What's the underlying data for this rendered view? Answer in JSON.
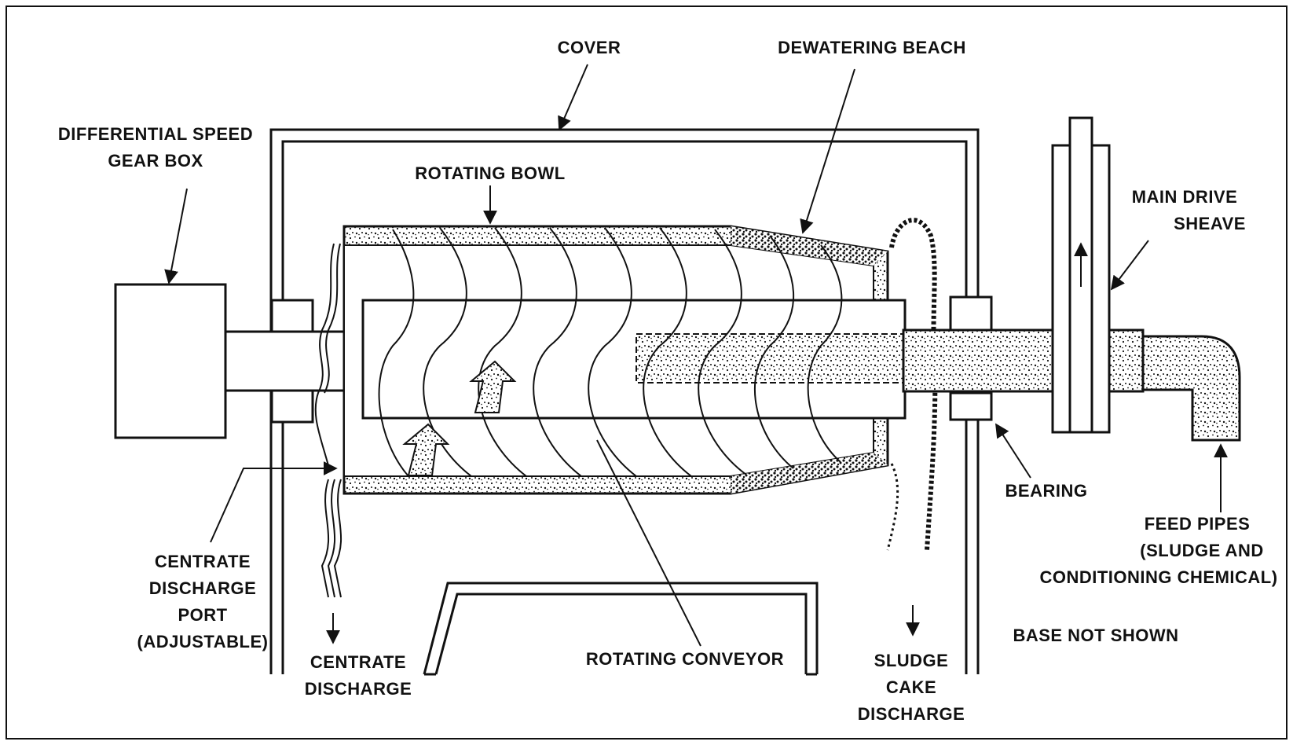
{
  "labels": {
    "cover": "COVER",
    "dewatering_beach": "DEWATERING BEACH",
    "gear_box_1": "DIFFERENTIAL SPEED",
    "gear_box_2": "GEAR BOX",
    "rotating_bowl": "ROTATING BOWL",
    "main_drive_1": "MAIN DRIVE",
    "main_drive_2": "SHEAVE",
    "bearing": "BEARING",
    "feed_1": "FEED PIPES",
    "feed_2": "(SLUDGE AND",
    "feed_3": "CONDITIONING CHEMICAL)",
    "base_not_shown": "BASE NOT SHOWN",
    "centrate_port_1": "CENTRATE",
    "centrate_port_2": "DISCHARGE",
    "centrate_port_3": "PORT",
    "centrate_port_4": "(ADJUSTABLE)",
    "centrate_discharge_1": "CENTRATE",
    "centrate_discharge_2": "DISCHARGE",
    "rotating_conveyor": "ROTATING CONVEYOR",
    "sludge_cake_1": "SLUDGE",
    "sludge_cake_2": "CAKE",
    "sludge_cake_3": "DISCHARGE"
  },
  "colors": {
    "ink": "#111111",
    "background": "#ffffff"
  }
}
